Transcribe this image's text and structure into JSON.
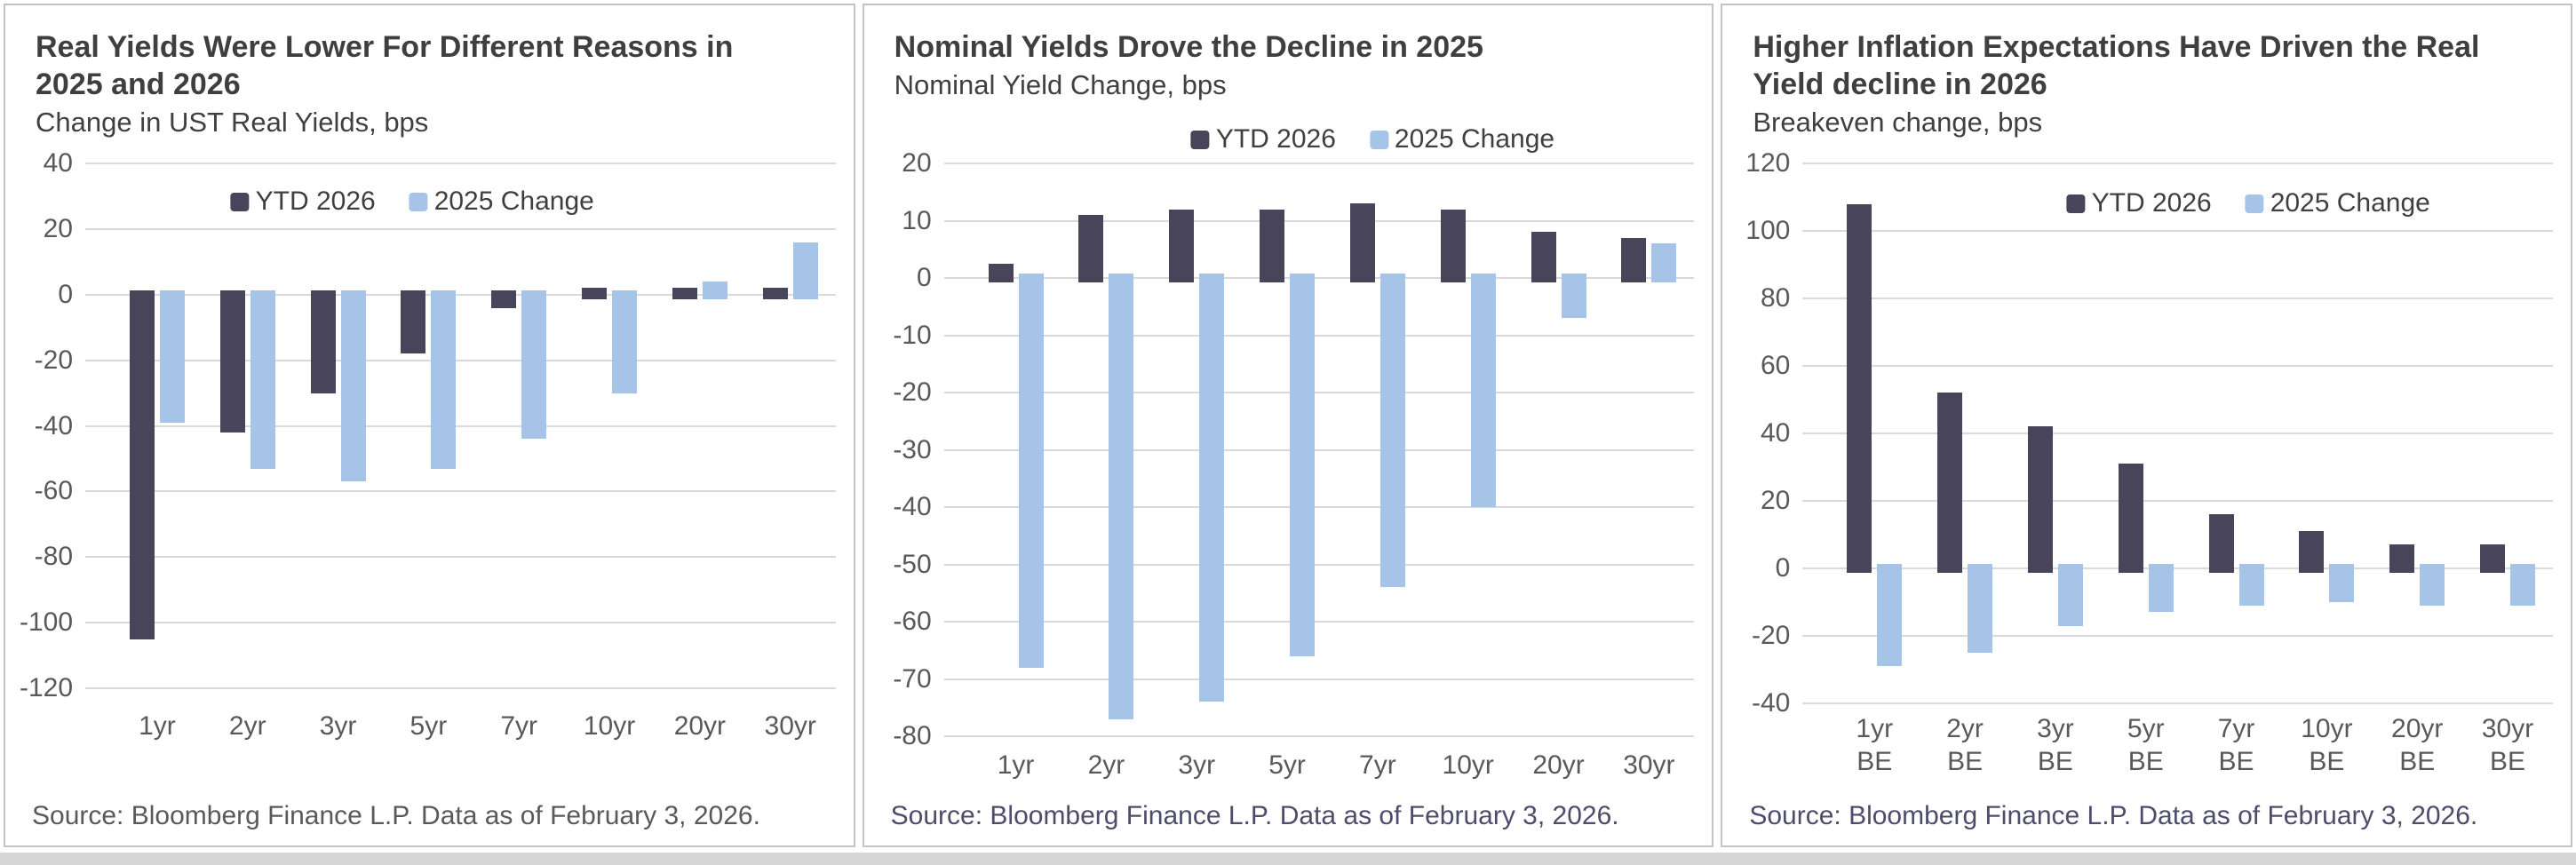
{
  "style": {
    "bar_dark": "#484459",
    "bar_light": "#a6c4e8",
    "gridline": "#d9d9d9",
    "title_color": "#3f3f3f",
    "axis_text_color": "#595959",
    "panel_border": "#c3c3c3",
    "source_colors": [
      "#595959",
      "#4d4c6b",
      "#4d4c6b"
    ]
  },
  "chart_data": [
    {
      "type": "bar",
      "title": "Real Yields Were Lower For Different Reasons in 2025 and 2026",
      "title_lines": [
        "Real Yields Were Lower For Different Reasons in",
        "2025 and 2026"
      ],
      "subtitle": "Change in UST Real Yields, bps",
      "categories": [
        "1yr",
        "2yr",
        "3yr",
        "5yr",
        "7yr",
        "10yr",
        "20yr",
        "30yr"
      ],
      "series": [
        {
          "name": "YTD 2026",
          "color": "#484459",
          "values": [
            -105,
            -42,
            -30,
            -18,
            -4,
            2,
            2,
            2
          ]
        },
        {
          "name": "2025 Change",
          "color": "#a6c4e8",
          "values": [
            -39,
            -53,
            -57,
            -53,
            -44,
            -30,
            4,
            16
          ]
        }
      ],
      "ylim": [
        -120,
        40
      ],
      "ytick_step": 20,
      "grid": true,
      "legend_position": "inside-top-center",
      "source": "Source: Bloomberg Finance L.P. Data as of February 3, 2026."
    },
    {
      "type": "bar",
      "title": "Nominal Yields Drove the Decline in 2025",
      "title_lines": [
        "Nominal Yields Drove the Decline in 2025"
      ],
      "subtitle": "Nominal Yield Change, bps",
      "categories": [
        "1yr",
        "2yr",
        "3yr",
        "5yr",
        "7yr",
        "10yr",
        "20yr",
        "30yr"
      ],
      "series": [
        {
          "name": "YTD 2026",
          "color": "#484459",
          "values": [
            2.5,
            11,
            12,
            12,
            13,
            12,
            8,
            7
          ]
        },
        {
          "name": "2025 Change",
          "color": "#a6c4e8",
          "values": [
            -68,
            -77,
            -74,
            -66,
            -54,
            -40,
            -7,
            6
          ]
        }
      ],
      "ylim": [
        -80,
        20
      ],
      "ytick_step": 10,
      "grid": true,
      "legend_position": "above-plot-right",
      "source": "Source: Bloomberg Finance L.P. Data as of February 3, 2026."
    },
    {
      "type": "bar",
      "title": "Higher Inflation Expectations Have Driven the Real Yield decline in 2026",
      "title_lines": [
        "Higher Inflation Expectations Have Driven the Real",
        "Yield decline in 2026"
      ],
      "subtitle": "Breakeven change, bps",
      "categories": [
        "1yr",
        "2yr",
        "3yr",
        "5yr",
        "7yr",
        "10yr",
        "20yr",
        "30yr"
      ],
      "category_line2": "BE",
      "series": [
        {
          "name": "YTD 2026",
          "color": "#484459",
          "values": [
            108,
            52,
            42,
            31,
            16,
            11,
            7,
            7
          ]
        },
        {
          "name": "2025 Change",
          "color": "#a6c4e8",
          "values": [
            -29,
            -25,
            -17,
            -13,
            -11,
            -10,
            -11,
            -11
          ]
        }
      ],
      "ylim": [
        -40,
        120
      ],
      "ytick_step": 20,
      "grid": true,
      "legend_position": "inside-top-right",
      "source": "Source: Bloomberg Finance L.P. Data as of February 3, 2026."
    }
  ]
}
